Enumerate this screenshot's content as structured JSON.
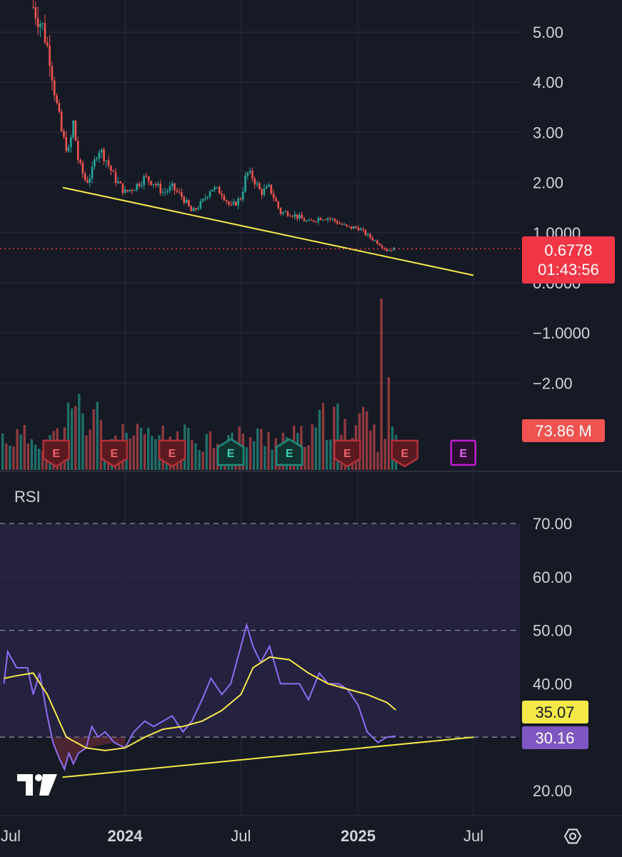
{
  "chart_data": [
    {
      "type": "candlestick",
      "y_axis_labels": [
        "5.00",
        "4.00",
        "3.00",
        "2.00",
        "1.0000",
        "0.0000",
        "−1.0000",
        "−2.00"
      ],
      "ylim": [
        -2.5,
        5.6
      ],
      "last_price": "0.6778",
      "countdown": "01:43:56",
      "colors": {
        "up": "#26a69a",
        "down": "#ef5350",
        "price_badge": "#f23645",
        "trendline": "#f5e94a"
      },
      "trendline": {
        "from": [
          "2023-10",
          1.9
        ],
        "to": [
          "2025-07",
          0.15
        ]
      },
      "price_path": [
        [
          "2023-08-10",
          5.5
        ],
        [
          "2023-08-25",
          5.1
        ],
        [
          "2023-09-05",
          4.5
        ],
        [
          "2023-09-15",
          3.6
        ],
        [
          "2023-09-25",
          2.9
        ],
        [
          "2023-10-05",
          2.6
        ],
        [
          "2023-10-12",
          3.2
        ],
        [
          "2023-10-20",
          2.4
        ],
        [
          "2023-11-01",
          2.0
        ],
        [
          "2023-11-10",
          2.2
        ],
        [
          "2023-11-20",
          2.7
        ],
        [
          "2023-12-01",
          2.5
        ],
        [
          "2023-12-15",
          2.1
        ],
        [
          "2024-01-01",
          1.8
        ],
        [
          "2024-01-15",
          1.9
        ],
        [
          "2024-02-01",
          2.1
        ],
        [
          "2024-02-15",
          2.0
        ],
        [
          "2024-03-01",
          1.8
        ],
        [
          "2024-03-15",
          1.9
        ],
        [
          "2024-04-01",
          1.7
        ],
        [
          "2024-04-15",
          1.4
        ],
        [
          "2024-05-01",
          1.6
        ],
        [
          "2024-05-15",
          1.9
        ],
        [
          "2024-06-01",
          1.8
        ],
        [
          "2024-06-15",
          1.5
        ],
        [
          "2024-07-01",
          1.7
        ],
        [
          "2024-07-10",
          2.2
        ],
        [
          "2024-07-20",
          2.1
        ],
        [
          "2024-08-01",
          1.8
        ],
        [
          "2024-08-15",
          1.9
        ],
        [
          "2024-09-01",
          1.4
        ],
        [
          "2024-09-15",
          1.4
        ],
        [
          "2024-10-01",
          1.3
        ],
        [
          "2024-10-15",
          1.2
        ],
        [
          "2024-11-01",
          1.3
        ],
        [
          "2024-11-15",
          1.3
        ],
        [
          "2024-12-01",
          1.2
        ],
        [
          "2024-12-15",
          1.1
        ],
        [
          "2025-01-01",
          1.1
        ],
        [
          "2025-01-15",
          0.95
        ],
        [
          "2025-02-01",
          0.8
        ],
        [
          "2025-02-15",
          0.65
        ],
        [
          "2025-03-01",
          0.68
        ]
      ]
    },
    {
      "type": "bar",
      "name": "Volume",
      "last_value": "73.86 M",
      "earnings_markers": [
        {
          "x": "2023-09",
          "color": "red"
        },
        {
          "x": "2023-12",
          "color": "red"
        },
        {
          "x": "2024-03",
          "color": "red"
        },
        {
          "x": "2024-06",
          "color": "green"
        },
        {
          "x": "2024-09",
          "color": "green"
        },
        {
          "x": "2024-12",
          "color": "red"
        },
        {
          "x": "2025-03",
          "color": "red"
        },
        {
          "x": "2025-06",
          "color": "purple"
        }
      ],
      "earnings_letter": "E",
      "spikes": [
        [
          "2025-02-05",
          "huge"
        ],
        [
          "2025-02-18",
          "large"
        ]
      ]
    },
    {
      "type": "line",
      "title": "RSI",
      "y_axis_labels": [
        "70.00",
        "60.00",
        "50.00",
        "40.00",
        "20.00"
      ],
      "ylim": [
        18,
        73
      ],
      "guides": [
        70,
        50,
        30
      ],
      "series": [
        {
          "color": "#8e6cef",
          "last_value": "30.16",
          "points": [
            [
              "2023-06-25",
              40
            ],
            [
              "2023-07-01",
              46
            ],
            [
              "2023-07-15",
              43
            ],
            [
              "2023-08-01",
              43
            ],
            [
              "2023-08-10",
              38
            ],
            [
              "2023-08-20",
              42
            ],
            [
              "2023-09-01",
              34
            ],
            [
              "2023-09-10",
              29
            ],
            [
              "2023-09-20",
              26
            ],
            [
              "2023-09-28",
              24
            ],
            [
              "2023-10-05",
              27
            ],
            [
              "2023-10-12",
              25
            ],
            [
              "2023-10-20",
              27
            ],
            [
              "2023-11-01",
              28
            ],
            [
              "2023-11-10",
              32
            ],
            [
              "2023-11-20",
              30
            ],
            [
              "2023-12-01",
              31
            ],
            [
              "2023-12-15",
              29
            ],
            [
              "2024-01-01",
              28
            ],
            [
              "2024-01-15",
              31
            ],
            [
              "2024-02-01",
              33
            ],
            [
              "2024-02-15",
              32
            ],
            [
              "2024-03-01",
              33
            ],
            [
              "2024-03-15",
              34
            ],
            [
              "2024-04-01",
              31
            ],
            [
              "2024-04-15",
              33
            ],
            [
              "2024-05-01",
              37
            ],
            [
              "2024-05-15",
              41
            ],
            [
              "2024-06-01",
              38
            ],
            [
              "2024-06-15",
              40
            ],
            [
              "2024-07-01",
              47
            ],
            [
              "2024-07-10",
              51
            ],
            [
              "2024-07-20",
              47
            ],
            [
              "2024-08-01",
              44
            ],
            [
              "2024-08-15",
              47
            ],
            [
              "2024-09-01",
              40
            ],
            [
              "2024-09-15",
              40
            ],
            [
              "2024-10-01",
              40
            ],
            [
              "2024-10-15",
              37
            ],
            [
              "2024-11-01",
              42
            ],
            [
              "2024-11-15",
              40
            ],
            [
              "2024-12-01",
              40
            ],
            [
              "2024-12-15",
              39
            ],
            [
              "2025-01-01",
              36
            ],
            [
              "2025-01-15",
              31
            ],
            [
              "2025-02-01",
              29
            ],
            [
              "2025-02-15",
              30
            ],
            [
              "2025-03-01",
              30.2
            ]
          ]
        },
        {
          "color": "#f5e94a",
          "last_value": "35.07",
          "points": [
            [
              "2023-06-25",
              41
            ],
            [
              "2023-07-15",
              41.5
            ],
            [
              "2023-08-10",
              42
            ],
            [
              "2023-09-01",
              38
            ],
            [
              "2023-10-01",
              30
            ],
            [
              "2023-11-01",
              28
            ],
            [
              "2023-12-01",
              27.5
            ],
            [
              "2024-01-01",
              28
            ],
            [
              "2024-02-01",
              30
            ],
            [
              "2024-03-01",
              31.5
            ],
            [
              "2024-04-01",
              32
            ],
            [
              "2024-05-01",
              33
            ],
            [
              "2024-06-01",
              35
            ],
            [
              "2024-07-01",
              38
            ],
            [
              "2024-07-20",
              43
            ],
            [
              "2024-08-15",
              45
            ],
            [
              "2024-09-15",
              44.5
            ],
            [
              "2024-10-15",
              42
            ],
            [
              "2024-11-15",
              40
            ],
            [
              "2024-12-15",
              39
            ],
            [
              "2025-01-15",
              38
            ],
            [
              "2025-02-15",
              36.5
            ],
            [
              "2025-03-01",
              35.1
            ]
          ]
        }
      ],
      "trendline": {
        "from": [
          "2023-09-25",
          22.5
        ],
        "to": [
          "2025-07",
          30
        ]
      }
    }
  ],
  "x_axis_labels": [
    {
      "text": "Jul",
      "bold": false
    },
    {
      "text": "2024",
      "bold": true
    },
    {
      "text": "Jul",
      "bold": false
    },
    {
      "text": "2025",
      "bold": true
    },
    {
      "text": "Jul",
      "bold": false
    }
  ],
  "settings_icon": "gear-icon",
  "logo": "tradingview-logo"
}
